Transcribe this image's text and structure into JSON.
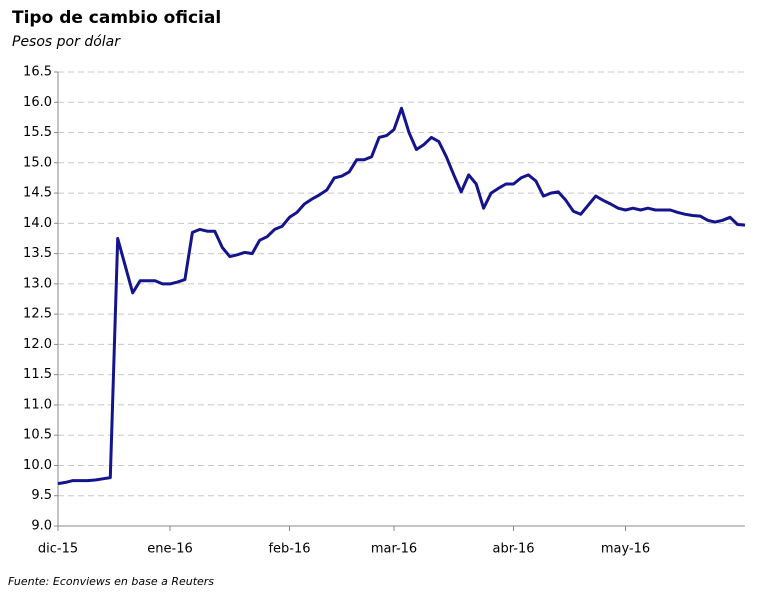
{
  "chart_data": {
    "type": "line",
    "title": "Tipo de cambio oficial",
    "subtitle": "Pesos por dólar",
    "source": "Fuente: Econviews en base a Reuters",
    "categories": [
      "dic-15",
      null,
      null,
      null,
      null,
      null,
      null,
      null,
      null,
      null,
      null,
      null,
      null,
      null,
      null,
      "ene-16",
      null,
      null,
      null,
      null,
      null,
      null,
      null,
      null,
      null,
      null,
      null,
      null,
      null,
      null,
      null,
      "feb-16",
      null,
      null,
      null,
      null,
      null,
      null,
      null,
      null,
      null,
      null,
      null,
      null,
      null,
      "mar-16",
      null,
      null,
      null,
      null,
      null,
      null,
      null,
      null,
      null,
      null,
      null,
      null,
      null,
      null,
      null,
      "abr-16",
      null,
      null,
      null,
      null,
      null,
      null,
      null,
      null,
      null,
      null,
      null,
      null,
      null,
      null,
      "may-16",
      null,
      null,
      null,
      null,
      null,
      null,
      null,
      null,
      null,
      null,
      null,
      null,
      null,
      null,
      null,
      null
    ],
    "series": [
      {
        "color": "#14148c",
        "values": [
          9.7,
          9.72,
          9.75,
          9.75,
          9.75,
          9.76,
          9.78,
          9.8,
          13.75,
          13.3,
          12.85,
          13.05,
          13.05,
          13.05,
          13.0,
          13.0,
          13.03,
          13.07,
          13.85,
          13.9,
          13.87,
          13.87,
          13.6,
          13.45,
          13.48,
          13.52,
          13.5,
          13.72,
          13.78,
          13.9,
          13.95,
          14.1,
          14.18,
          14.32,
          14.4,
          14.47,
          14.55,
          14.75,
          14.78,
          14.85,
          15.05,
          15.05,
          15.1,
          15.42,
          15.45,
          15.55,
          15.9,
          15.5,
          15.22,
          15.3,
          15.42,
          15.35,
          15.1,
          14.8,
          14.52,
          14.8,
          14.65,
          14.25,
          14.5,
          14.58,
          14.65,
          14.65,
          14.75,
          14.8,
          14.7,
          14.45,
          14.5,
          14.52,
          14.38,
          14.2,
          14.15,
          14.3,
          14.45,
          14.38,
          14.32,
          14.25,
          14.22,
          14.25,
          14.22,
          14.25,
          14.22,
          14.22,
          14.22,
          14.18,
          14.15,
          14.13,
          14.12,
          14.05,
          14.02,
          14.05,
          14.1,
          13.98,
          13.97
        ]
      }
    ],
    "ylim": [
      9,
      16.5
    ],
    "yticks": [
      {
        "value": 9,
        "label": "9.0"
      },
      {
        "value": 9.5,
        "label": "9.5"
      },
      {
        "value": 10,
        "label": "10.0"
      },
      {
        "value": 10.5,
        "label": "10.5"
      },
      {
        "value": 11,
        "label": "11.0"
      },
      {
        "value": 11.5,
        "label": "11.5"
      },
      {
        "value": 12,
        "label": "12.0"
      },
      {
        "value": 12.5,
        "label": "12.5"
      },
      {
        "value": 13,
        "label": "13.0"
      },
      {
        "value": 13.5,
        "label": "13.5"
      },
      {
        "value": 14,
        "label": "14.0"
      },
      {
        "value": 14.5,
        "label": "14.5"
      },
      {
        "value": 15,
        "label": "15.0"
      },
      {
        "value": 15.5,
        "label": "15.5"
      },
      {
        "value": 16,
        "label": "16.0"
      },
      {
        "value": 16.5,
        "label": "16.5"
      }
    ],
    "grid": true
  }
}
